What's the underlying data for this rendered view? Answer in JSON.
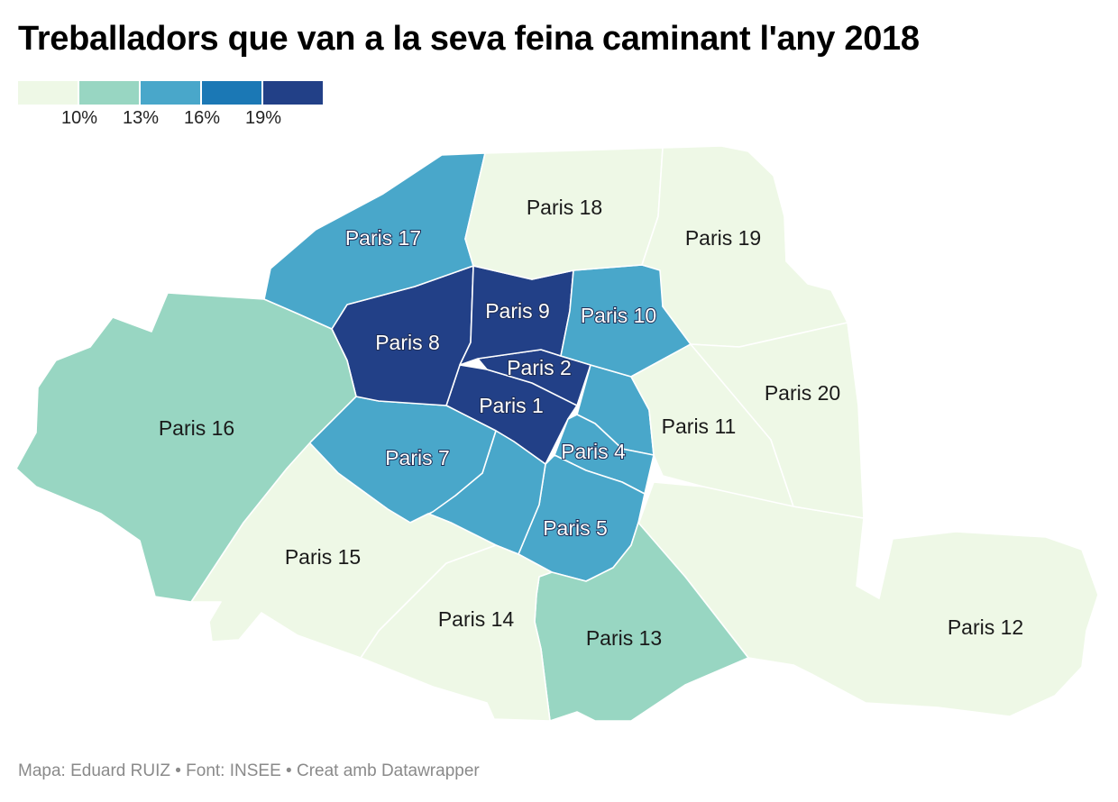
{
  "title": "Treballadors que van a la seva feina caminant l'any 2018",
  "legend": {
    "colors": [
      "#eef8e6",
      "#98d6c2",
      "#49a7ca",
      "#1b78b5",
      "#224087"
    ],
    "ticks": [
      "10%",
      "13%",
      "16%",
      "19%"
    ]
  },
  "footer": "Mapa: Eduard RUIZ • Font: INSEE • Creat amb Datawrapper",
  "map": {
    "districts": [
      {
        "id": "paris-1",
        "label": "Paris 1",
        "color_bin": 4
      },
      {
        "id": "paris-2",
        "label": "Paris 2",
        "color_bin": 4
      },
      {
        "id": "paris-3",
        "label": "",
        "color_bin": 2
      },
      {
        "id": "paris-4",
        "label": "Paris 4",
        "color_bin": 2
      },
      {
        "id": "paris-5",
        "label": "Paris 5",
        "color_bin": 2
      },
      {
        "id": "paris-6",
        "label": "",
        "color_bin": 2
      },
      {
        "id": "paris-7",
        "label": "Paris 7",
        "color_bin": 2
      },
      {
        "id": "paris-8",
        "label": "Paris 8",
        "color_bin": 4
      },
      {
        "id": "paris-9",
        "label": "Paris 9",
        "color_bin": 4
      },
      {
        "id": "paris-10",
        "label": "Paris 10",
        "color_bin": 2
      },
      {
        "id": "paris-11",
        "label": "Paris 11",
        "color_bin": 0
      },
      {
        "id": "paris-12",
        "label": "Paris 12",
        "color_bin": 0
      },
      {
        "id": "paris-13",
        "label": "Paris 13",
        "color_bin": 1
      },
      {
        "id": "paris-14",
        "label": "Paris 14",
        "color_bin": 0
      },
      {
        "id": "paris-15",
        "label": "Paris 15",
        "color_bin": 0
      },
      {
        "id": "paris-16",
        "label": "Paris 16",
        "color_bin": 1
      },
      {
        "id": "paris-17",
        "label": "Paris 17",
        "color_bin": 2
      },
      {
        "id": "paris-18",
        "label": "Paris 18",
        "color_bin": 0
      },
      {
        "id": "paris-19",
        "label": "Paris 19",
        "color_bin": 0
      },
      {
        "id": "paris-20",
        "label": "Paris 20",
        "color_bin": 0
      }
    ]
  }
}
